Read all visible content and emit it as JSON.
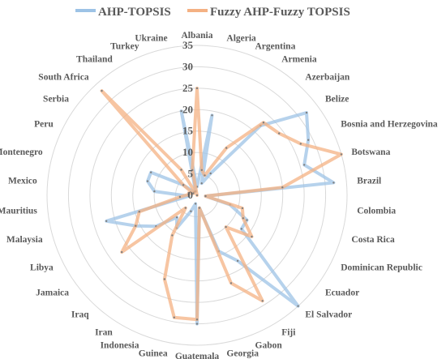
{
  "chart_data": {
    "type": "radar",
    "categories": [
      "Albania",
      "Algeria",
      "Argentina",
      "Armenia",
      "Azerbaijan",
      "Belize",
      "Bosnia and Herzegovina",
      "Botswana",
      "Brazil",
      "Colombia",
      "Costa Rica",
      "Dominican Republic",
      "Ecuador",
      "El Salvador",
      "Fiji",
      "Gabon",
      "Georgia",
      "Guatemala",
      "Guinea",
      "Indonesia",
      "Iran",
      "Iraq",
      "Jamaica",
      "Libya",
      "Malaysia",
      "Mauritius",
      "Mexico",
      "Montenegro",
      "Peru",
      "Serbia",
      "South Africa",
      "Thailand",
      "Turkey",
      "Ukraine"
    ],
    "ticks": [
      "0",
      "5",
      "10",
      "15",
      "20",
      "25",
      "30",
      "35"
    ],
    "rmax": 35,
    "series": [
      {
        "name": "AHP-TOPSIS",
        "color": "#9dc3e6",
        "values": [
          2,
          19,
          3,
          6,
          22,
          32,
          29,
          26,
          32,
          2,
          8,
          13,
          13,
          35,
          18,
          14,
          3,
          30,
          2,
          4,
          9,
          7,
          12,
          16,
          22,
          2,
          10,
          12,
          12,
          4,
          1,
          1,
          1,
          20
        ]
      },
      {
        "name": "Fuzzy AHP-Fuzzy TOPSIS",
        "color": "#f4b183",
        "values": [
          25,
          6,
          5,
          13,
          23,
          24,
          27,
          35,
          20,
          2,
          11,
          12,
          16,
          10,
          29,
          22,
          3,
          29,
          29,
          21,
          11,
          4,
          22,
          16,
          14,
          4,
          2,
          2,
          1,
          4,
          33,
          7,
          0,
          6
        ]
      }
    ]
  }
}
